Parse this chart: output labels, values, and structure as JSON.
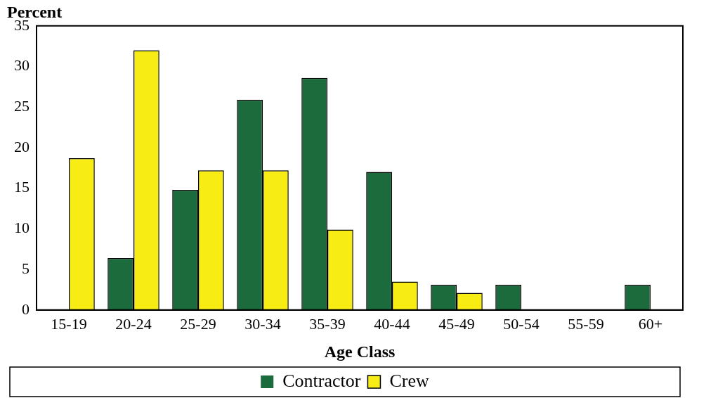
{
  "chart_data": {
    "type": "bar",
    "ylabel": "Percent",
    "xlabel": "Age Class",
    "categories": [
      "15-19",
      "20-24",
      "25-29",
      "30-34",
      "35-39",
      "40-44",
      "45-49",
      "50-54",
      "55-59",
      "60+"
    ],
    "series": [
      {
        "name": "Contractor",
        "color": "#1b6b3c",
        "values": [
          0,
          6.4,
          14.8,
          25.9,
          28.6,
          17.0,
          3.1,
          3.1,
          0,
          3.1
        ]
      },
      {
        "name": "Crew",
        "color": "#f7ec14",
        "values": [
          18.7,
          32.0,
          17.2,
          17.2,
          9.9,
          3.5,
          2.1,
          0,
          0,
          0
        ]
      }
    ],
    "ylim": [
      0,
      35
    ],
    "yticks": [
      0,
      5,
      10,
      15,
      20,
      25,
      30,
      35
    ],
    "grid": false,
    "legend": "bottom"
  }
}
